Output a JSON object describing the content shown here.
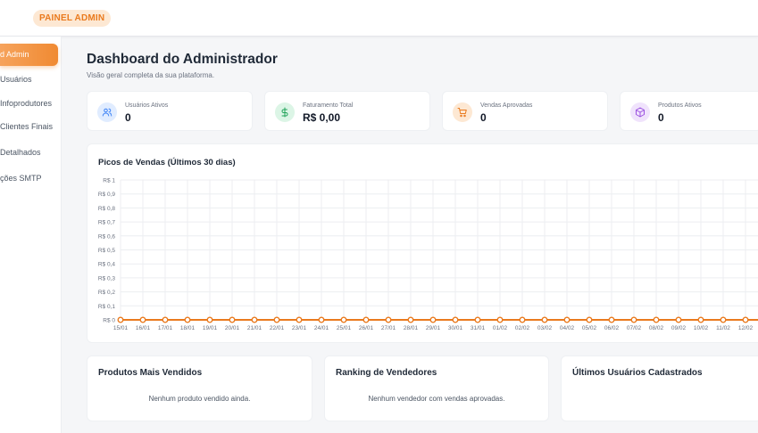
{
  "header": {
    "brand": "PAINEL ADMIN"
  },
  "sidebar": {
    "items": [
      {
        "label": "d Admin",
        "active": true
      },
      {
        "label": "Usuários",
        "active": false
      },
      {
        "label": "Infoprodutores",
        "active": false
      },
      {
        "label": "Clientes Finais",
        "active": false
      },
      {
        "label": "Detalhados",
        "active": false
      },
      {
        "label": "ções SMTP",
        "active": false
      }
    ]
  },
  "main": {
    "title": "Dashboard do Administrador",
    "subtitle": "Visão geral completa da sua plataforma."
  },
  "stats": [
    {
      "label": "Usuários Ativos",
      "value": "0",
      "icon": "users-icon",
      "color": "#3b82f6",
      "bg": "#e0ecff"
    },
    {
      "label": "Faturamento Total",
      "value": "R$ 0,00",
      "icon": "dollar-icon",
      "color": "#22a35a",
      "bg": "#dcf5e6"
    },
    {
      "label": "Vendas Aprovadas",
      "value": "0",
      "icon": "cart-icon",
      "color": "#ea7a1e",
      "bg": "#fde8d3"
    },
    {
      "label": "Produtos Ativos",
      "value": "0",
      "icon": "box-icon",
      "color": "#9b51e0",
      "bg": "#f0e3fc"
    }
  ],
  "chart_data": {
    "type": "line",
    "title": "Picos de Vendas (Últimos 30 dias)",
    "xlabel": "",
    "ylabel": "",
    "ylim": [
      0,
      1
    ],
    "y_ticks": [
      "R$ 0",
      "R$ 0,1",
      "R$ 0,2",
      "R$ 0,3",
      "R$ 0,4",
      "R$ 0,5",
      "R$ 0,6",
      "R$ 0,7",
      "R$ 0,8",
      "R$ 0,9",
      "R$ 1"
    ],
    "categories": [
      "15/01",
      "16/01",
      "17/01",
      "18/01",
      "19/01",
      "20/01",
      "21/01",
      "22/01",
      "23/01",
      "24/01",
      "25/01",
      "26/01",
      "27/01",
      "28/01",
      "29/01",
      "30/01",
      "31/01",
      "01/02",
      "02/02",
      "03/02",
      "04/02",
      "05/02",
      "06/02",
      "07/02",
      "08/02",
      "09/02",
      "10/02",
      "11/02",
      "12/02"
    ],
    "series": [
      {
        "values": [
          0,
          0,
          0,
          0,
          0,
          0,
          0,
          0,
          0,
          0,
          0,
          0,
          0,
          0,
          0,
          0,
          0,
          0,
          0,
          0,
          0,
          0,
          0,
          0,
          0,
          0,
          0,
          0,
          0
        ],
        "color": "#ea7a1e"
      }
    ],
    "grid": true
  },
  "bottom": [
    {
      "title": "Produtos Mais Vendidos",
      "empty": "Nenhum produto vendido ainda."
    },
    {
      "title": "Ranking de Vendedores",
      "empty": "Nenhum vendedor com vendas aprovadas."
    },
    {
      "title": "Últimos Usuários Cadastrados",
      "empty": ""
    }
  ]
}
